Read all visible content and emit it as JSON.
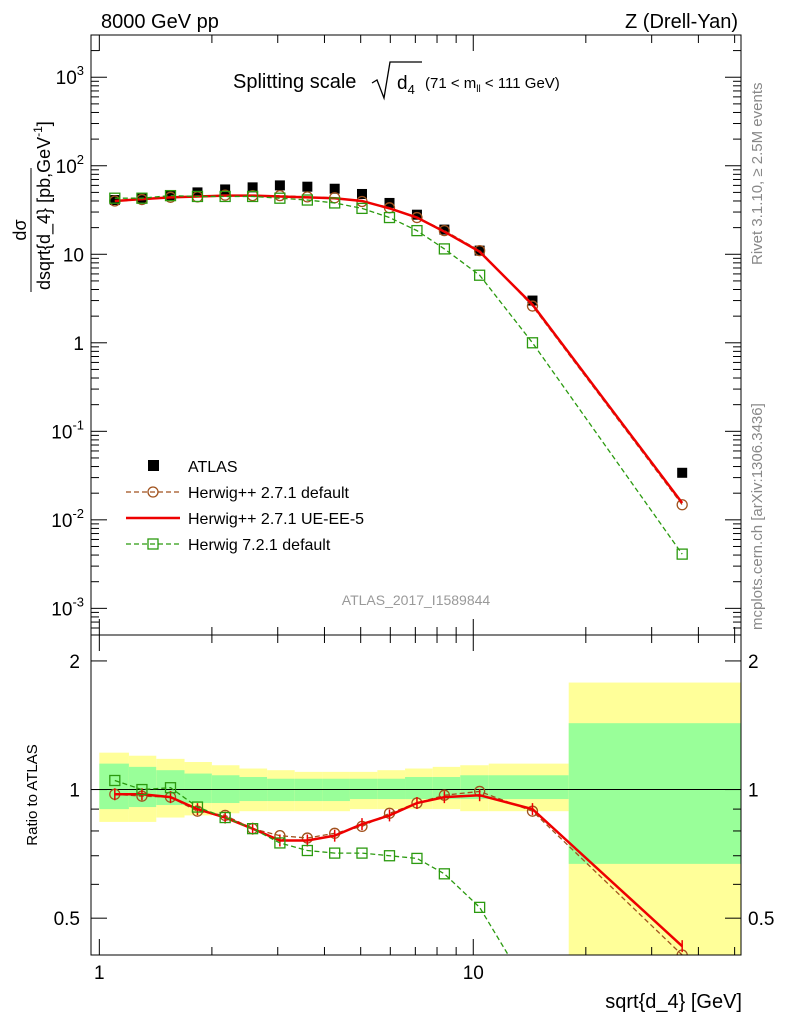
{
  "header": {
    "left": "8000 GeV pp",
    "right": "Z (Drell-Yan)"
  },
  "side_text": {
    "rivet": "Rivet 3.1.10, ≥ 2.5M events",
    "mcplots": "mcplots.cern.ch [arXiv:1306.3436]"
  },
  "chart_data": [
    {
      "type": "line",
      "title_main": "Splitting scale",
      "title_sub": "d",
      "title_sub_index": "4",
      "title_range_pre": "(71 < m",
      "title_range_sub": "ll",
      "title_range_post": " < 111 GeV)",
      "ylabel_top": "dσ",
      "ylabel_bottom": "dsqrt{d_4} [pb,GeV",
      "ylabel_exp": "-1",
      "ylabel_close": "]",
      "yscale": "log",
      "ylim": [
        0.0005,
        3000
      ],
      "xscale": "log",
      "xlim": [
        0.95,
        52
      ],
      "y_ticks": [
        {
          "value": 0.001,
          "base": "10",
          "exp": "-3"
        },
        {
          "value": 0.01,
          "base": "10",
          "exp": "-2"
        },
        {
          "value": 0.1,
          "base": "10",
          "exp": "-1"
        },
        {
          "value": 1,
          "base": "1",
          "exp": ""
        },
        {
          "value": 10,
          "base": "10",
          "exp": ""
        },
        {
          "value": 100,
          "base": "10",
          "exp": "2"
        },
        {
          "value": 1000,
          "base": "10",
          "exp": "3"
        }
      ],
      "watermark": "ATLAS_2017_I1589844",
      "legend_position": "bottom-left",
      "series": [
        {
          "name": "ATLAS",
          "style": "data",
          "color": "#000000",
          "x": [
            1.1,
            1.3,
            1.55,
            1.83,
            2.17,
            2.57,
            3.04,
            3.6,
            4.26,
            5.04,
            5.97,
            7.07,
            8.37,
            10.4,
            14.4,
            36.2
          ],
          "y": [
            41,
            43,
            46,
            50,
            54,
            57,
            60,
            58,
            55,
            48,
            38,
            28,
            19,
            11,
            3.0,
            0.034
          ]
        },
        {
          "name": "Herwig++ 2.7.1 default",
          "style": "circle-dashed",
          "color": "#a0521d",
          "x": [
            1.1,
            1.3,
            1.55,
            1.83,
            2.17,
            2.57,
            3.04,
            3.6,
            4.26,
            5.04,
            5.97,
            7.07,
            8.37,
            10.4,
            14.4,
            36.2
          ],
          "y": [
            40,
            41.5,
            44,
            44.5,
            46.5,
            46,
            46,
            44.5,
            43.5,
            39.5,
            33.5,
            26,
            18.5,
            11,
            2.6,
            0.0148
          ]
        },
        {
          "name": "Herwig++ 2.7.1 UE-EE-5",
          "style": "solid",
          "color": "#ee0000",
          "x": [
            1.1,
            1.3,
            1.55,
            1.83,
            2.17,
            2.57,
            3.04,
            3.6,
            4.26,
            5.04,
            5.97,
            7.07,
            8.37,
            10.4,
            14.4,
            36.2
          ],
          "y": [
            40,
            42,
            44,
            45,
            46,
            46,
            45,
            44,
            43,
            40,
            33,
            26,
            18,
            10.7,
            2.7,
            0.0155
          ]
        },
        {
          "name": "Herwig 7.2.1 default",
          "style": "square-dashed",
          "color": "#2b9a0f",
          "x": [
            1.1,
            1.3,
            1.55,
            1.83,
            2.17,
            2.57,
            3.04,
            3.6,
            4.26,
            5.04,
            5.97,
            7.07,
            8.37,
            10.4,
            14.4,
            36.2
          ],
          "y": [
            43,
            43,
            46,
            45,
            45,
            45,
            43,
            41,
            38,
            33,
            26,
            18.5,
            11.5,
            5.8,
            1.0,
            0.0041
          ]
        }
      ]
    },
    {
      "type": "line",
      "ylabel": "Ratio to ATLAS",
      "xlabel": "sqrt{d_4} [GeV]",
      "xscale": "log",
      "xlim": [
        0.95,
        52
      ],
      "ylim": [
        0.41,
        2.3
      ],
      "yscale": "log",
      "y_ticks": [
        "0.5",
        "1",
        "2"
      ],
      "x_ticks": [
        "1",
        "10"
      ],
      "bands": {
        "x_edges": [
          1,
          1.2,
          1.42,
          1.69,
          2.0,
          2.37,
          2.81,
          3.33,
          3.95,
          4.68,
          5.54,
          6.57,
          7.79,
          9.23,
          11.0,
          18.0,
          52
        ],
        "outer_lo": [
          0.84,
          0.84,
          0.86,
          0.87,
          0.88,
          0.89,
          0.89,
          0.89,
          0.89,
          0.9,
          0.9,
          0.9,
          0.9,
          0.89,
          0.89,
          0.41
        ],
        "outer_hi": [
          1.22,
          1.2,
          1.18,
          1.16,
          1.14,
          1.12,
          1.11,
          1.1,
          1.1,
          1.1,
          1.11,
          1.12,
          1.13,
          1.14,
          1.15,
          1.78
        ],
        "inner_lo": [
          0.9,
          0.91,
          0.92,
          0.93,
          0.93,
          0.94,
          0.94,
          0.94,
          0.94,
          0.95,
          0.95,
          0.95,
          0.95,
          0.95,
          0.95,
          0.67
        ],
        "inner_hi": [
          1.15,
          1.13,
          1.11,
          1.09,
          1.08,
          1.07,
          1.06,
          1.06,
          1.06,
          1.06,
          1.06,
          1.07,
          1.07,
          1.08,
          1.08,
          1.43
        ],
        "outer_color": "#ffff99",
        "inner_color": "#99ff99"
      },
      "series": [
        {
          "name": "Herwig++ 2.7.1 default",
          "style": "circle-dashed",
          "color": "#a0521d",
          "x": [
            1.1,
            1.3,
            1.55,
            1.83,
            2.17,
            2.57,
            3.04,
            3.6,
            4.26,
            5.04,
            5.97,
            7.07,
            8.37,
            10.4,
            14.4,
            36.2
          ],
          "y": [
            0.975,
            0.965,
            0.96,
            0.89,
            0.87,
            0.81,
            0.78,
            0.77,
            0.79,
            0.82,
            0.88,
            0.93,
            0.97,
            0.99,
            0.89,
            0.41
          ]
        },
        {
          "name": "Herwig++ 2.7.1 UE-EE-5",
          "style": "solid",
          "color": "#ee0000",
          "x": [
            1.1,
            1.3,
            1.55,
            1.83,
            2.17,
            2.57,
            3.04,
            3.6,
            4.26,
            5.04,
            5.97,
            7.07,
            8.37,
            10.4,
            14.4,
            36.2
          ],
          "y": [
            0.975,
            0.975,
            0.96,
            0.9,
            0.86,
            0.81,
            0.76,
            0.76,
            0.78,
            0.83,
            0.87,
            0.93,
            0.96,
            0.97,
            0.9,
            0.43
          ]
        },
        {
          "name": "Herwig 7.2.1 default",
          "style": "square-dashed",
          "color": "#2b9a0f",
          "x": [
            1.1,
            1.3,
            1.55,
            1.83,
            2.17,
            2.57,
            3.04,
            3.6,
            4.26,
            5.04,
            5.97,
            7.07,
            8.37,
            10.4,
            14.4
          ],
          "y": [
            1.05,
            1.0,
            1.01,
            0.91,
            0.86,
            0.81,
            0.75,
            0.72,
            0.71,
            0.71,
            0.7,
            0.69,
            0.635,
            0.53,
            0.33
          ]
        }
      ]
    }
  ]
}
